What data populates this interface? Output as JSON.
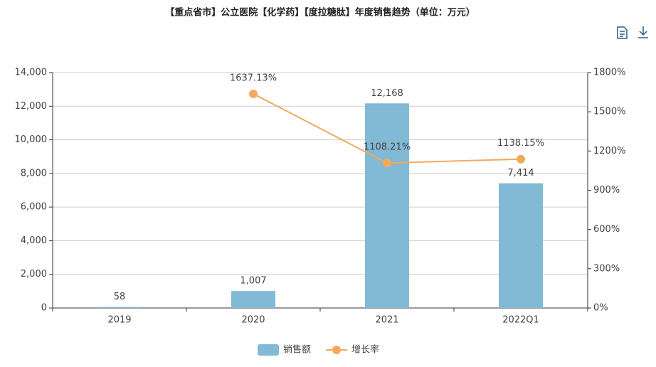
{
  "chart_data": {
    "type": "bar",
    "title": "【重点省市】公立医院【化学药】【度拉糖肽】年度销售趋势（单位：万元）",
    "categories": [
      "2019",
      "2020",
      "2021",
      "2022Q1"
    ],
    "series": [
      {
        "name": "销售额",
        "type": "bar",
        "color": "#82b9d4",
        "values": [
          58,
          1007,
          12168,
          7414
        ],
        "value_labels": [
          "58",
          "1,007",
          "12,168",
          "7,414"
        ]
      },
      {
        "name": "增长率",
        "type": "line",
        "axis": "y2",
        "color": "#f0aa5e",
        "values": [
          null,
          1637.13,
          1108.21,
          1138.15
        ],
        "value_labels": [
          null,
          "1637.13%",
          "1108.21%",
          "1138.15%"
        ]
      }
    ],
    "ylim": [
      0,
      14000
    ],
    "yticks": [
      0,
      {
        "value": 2000,
        "label": "2,000"
      },
      {
        "value": 4000,
        "label": "4,000"
      },
      {
        "value": 6000,
        "label": "6,000"
      },
      {
        "value": 8000,
        "label": "8,000"
      },
      {
        "value": 10000,
        "label": "10,000"
      },
      {
        "value": 12000,
        "label": "12,000"
      },
      {
        "value": 14000,
        "label": "14,000"
      }
    ],
    "y2lim": [
      0,
      1800
    ],
    "y2ticks": [
      {
        "value": 0,
        "label": "0%"
      },
      {
        "value": 300,
        "label": "300%"
      },
      {
        "value": 600,
        "label": "600%"
      },
      {
        "value": 900,
        "label": "900%"
      },
      {
        "value": 1200,
        "label": "1200%"
      },
      {
        "value": 1500,
        "label": "1500%"
      },
      {
        "value": 1800,
        "label": "1800%"
      }
    ],
    "grid": true,
    "legend": "bottom"
  }
}
